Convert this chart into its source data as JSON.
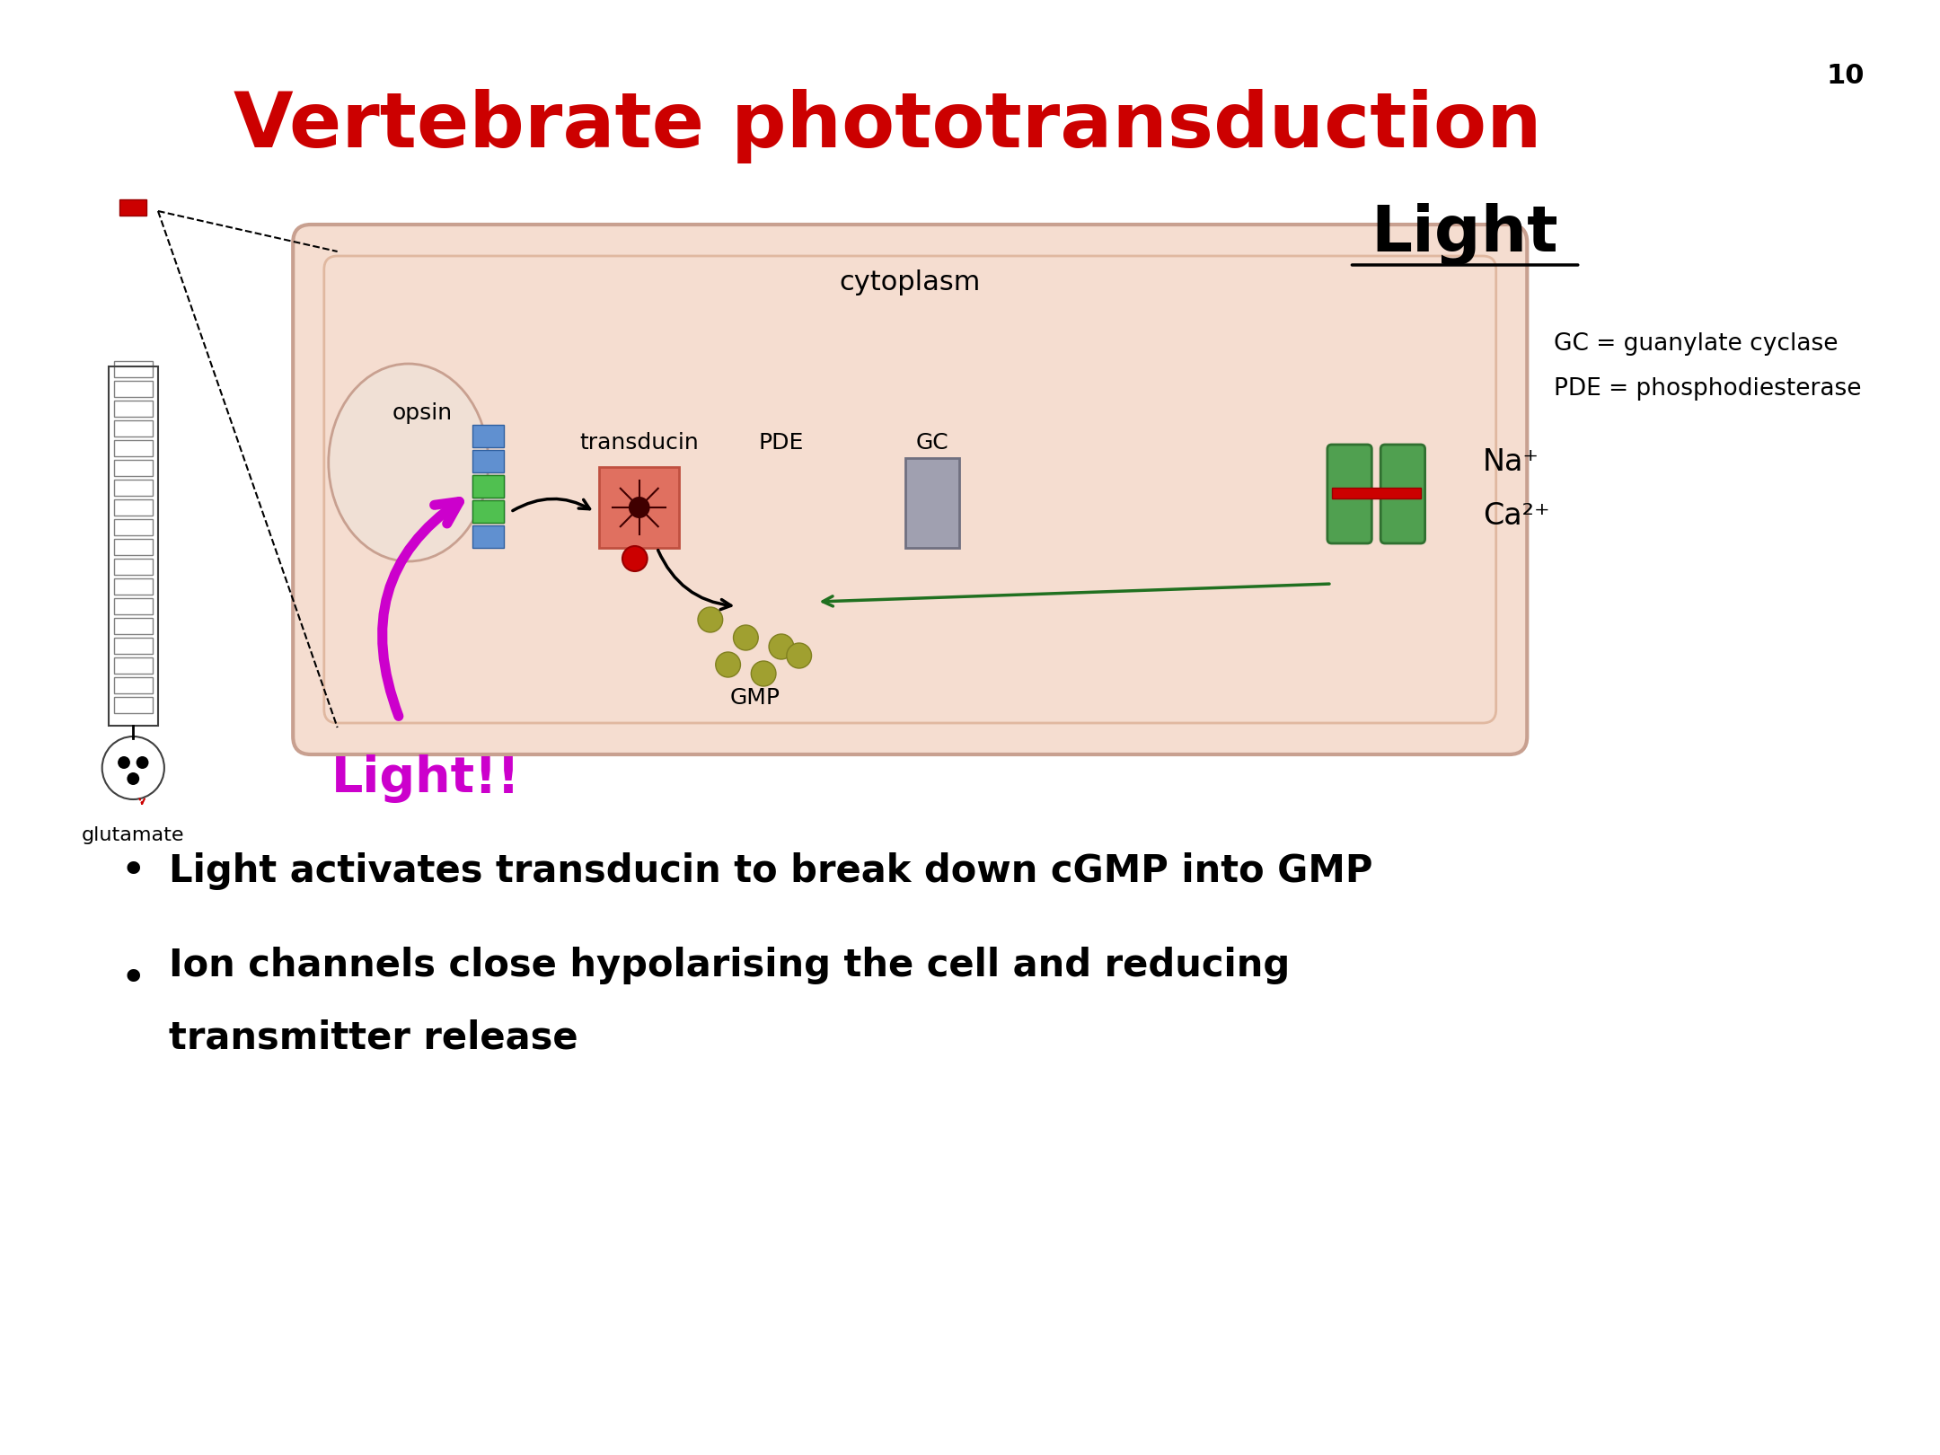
{
  "title": "Vertebrate phototransduction",
  "title_color": "#cc0000",
  "slide_number": "10",
  "bullet1": "Light activates transducin to break down cGMP into GMP",
  "bullet2": "Ion channels close hypolarising the cell and reducing\ntransmitter release",
  "light_label": "Light",
  "light_exclaim": "Light!!",
  "cytoplasm_label": "cytoplasm",
  "opsin_label": "opsin",
  "transducin_label": "transducin",
  "pde_label": "PDE",
  "gc_label": "GC",
  "gmp_label": "GMP",
  "na_label": "Na⁺",
  "ca_label": "Ca²⁺",
  "gc_def": "GC = guanylate cyclase",
  "pde_def": "PDE = phosphodiesterase",
  "cell_bg": "#f5ddd0",
  "cell_border": "#c8a090",
  "membrane_color": "#e8b090",
  "disc_bg": "#f0e8e0",
  "purple": "#cc00cc",
  "dark_purple": "#990099"
}
